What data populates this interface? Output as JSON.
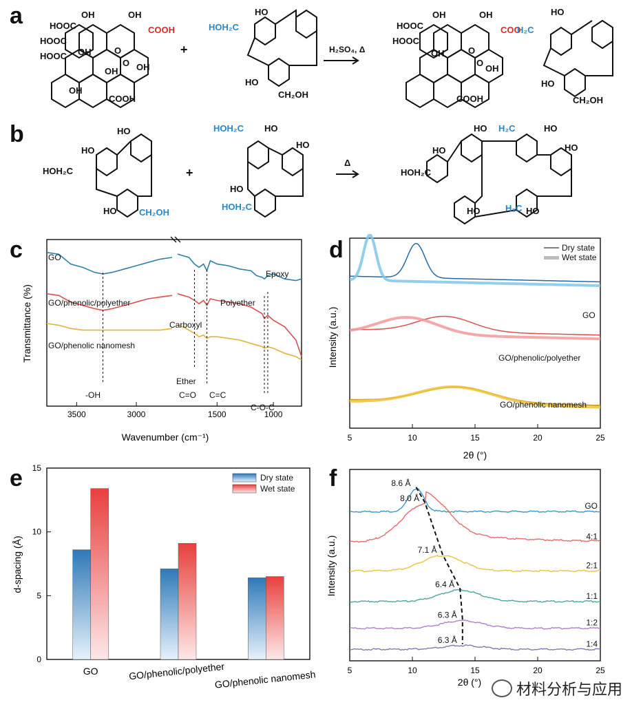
{
  "panels": {
    "a": "a",
    "b": "b",
    "c": "c",
    "d": "d",
    "e": "e",
    "f": "f"
  },
  "schemes": {
    "a": {
      "go_labels": [
        "COOH",
        "HOOC",
        "OH",
        "HOOC",
        "HOOC",
        "OH",
        "O",
        "OH",
        "O",
        "OH",
        "OH",
        "COOH",
        "OH"
      ],
      "phenolic_label": "HOH₂C",
      "phenolic_ring_labels": [
        "HO",
        "HO",
        "CH₂OH"
      ],
      "plus": "+",
      "reagent": "H₂SO₄, Δ",
      "product_link": "COO",
      "product_link2": "H₂C",
      "product_labels": [
        "HOOC",
        "HOOC",
        "OH",
        "OH",
        "O",
        "OH",
        "O",
        "OH",
        "COOH",
        "HO",
        "HO",
        "CH₂OH"
      ]
    },
    "b": {
      "left_labels": [
        "HO",
        "HO",
        "HOH₂C",
        "HO",
        "CH₂OH"
      ],
      "right_labels": [
        "HOH₂C",
        "HO",
        "HO",
        "HO",
        "HOH₂C"
      ],
      "plus": "+",
      "reagent": "Δ",
      "product_labels": [
        "HO",
        "H₂C",
        "HO",
        "HO",
        "HOH₂C",
        "HO",
        "HO",
        "HO",
        "H₂C"
      ]
    }
  },
  "chart_data": [
    {
      "panel": "c",
      "type": "line",
      "xlabel": "Wavenumber (cm⁻¹)",
      "ylabel": "Transmittance (%)",
      "x_ticks": [
        "3500",
        "3000",
        "1500",
        "1000"
      ],
      "series": [
        {
          "name": "GO",
          "color": "#2d7fa6",
          "x": [
            3750,
            3650,
            3550,
            3450,
            3350,
            3280,
            3200,
            3100,
            3000,
            2900,
            2800,
            2700,
            1850,
            1800,
            1750,
            1700,
            1660,
            1620,
            1590,
            1560,
            1500,
            1400,
            1300,
            1200,
            1150,
            1100,
            1080,
            1050,
            1000,
            900,
            800,
            750
          ],
          "y": [
            0.93,
            0.92,
            0.86,
            0.84,
            0.81,
            0.8,
            0.81,
            0.83,
            0.85,
            0.87,
            0.89,
            0.9,
            0.92,
            0.91,
            0.9,
            0.86,
            0.84,
            0.86,
            0.82,
            0.88,
            0.86,
            0.85,
            0.83,
            0.82,
            0.79,
            0.78,
            0.77,
            0.79,
            0.8,
            0.77,
            0.76,
            0.77
          ]
        },
        {
          "name": "GO/phenolic/polyether",
          "color": "#d9504f",
          "x": [
            3750,
            3650,
            3550,
            3450,
            3350,
            3280,
            3200,
            3100,
            3000,
            2900,
            2800,
            2700,
            1850,
            1800,
            1750,
            1700,
            1660,
            1620,
            1590,
            1560,
            1500,
            1400,
            1300,
            1200,
            1150,
            1100,
            1080,
            1050,
            1000,
            900,
            800,
            750
          ],
          "y": [
            0.68,
            0.67,
            0.63,
            0.61,
            0.59,
            0.58,
            0.59,
            0.61,
            0.63,
            0.65,
            0.66,
            0.67,
            0.68,
            0.67,
            0.66,
            0.64,
            0.62,
            0.64,
            0.61,
            0.65,
            0.64,
            0.63,
            0.62,
            0.6,
            0.58,
            0.56,
            0.53,
            0.55,
            0.52,
            0.48,
            0.4,
            0.3
          ]
        },
        {
          "name": "GO/phenolic nanomesh",
          "color": "#e3b23c",
          "x": [
            3750,
            3650,
            3550,
            3450,
            3350,
            3280,
            3200,
            3100,
            3000,
            2900,
            2800,
            2700,
            1850,
            1800,
            1750,
            1700,
            1660,
            1620,
            1590,
            1560,
            1500,
            1400,
            1300,
            1200,
            1150,
            1100,
            1080,
            1050,
            1000,
            900,
            800,
            750
          ],
          "y": [
            0.5,
            0.49,
            0.47,
            0.46,
            0.46,
            0.46,
            0.46,
            0.46,
            0.46,
            0.46,
            0.46,
            0.47,
            0.49,
            0.48,
            0.46,
            0.44,
            0.42,
            0.43,
            0.41,
            0.42,
            0.42,
            0.41,
            0.4,
            0.38,
            0.37,
            0.36,
            0.35,
            0.36,
            0.35,
            0.32,
            0.3,
            0.28
          ]
        }
      ],
      "annotations": [
        "-OH",
        "Carboxyl",
        "Epoxy",
        "Polyether",
        "Ether",
        "C=O",
        "C=C",
        "C-O-C"
      ],
      "series_labels": [
        "GO",
        "GO/phenolic/polyether",
        "GO/phenolic nanomesh"
      ]
    },
    {
      "panel": "d",
      "type": "line",
      "xlabel": "2θ (°)",
      "ylabel": "Intensity (a.u.)",
      "xlim": [
        5,
        25
      ],
      "x_ticks": [
        "5",
        "10",
        "15",
        "20",
        "25"
      ],
      "legend": [
        "Dry state",
        "Wet state"
      ],
      "legend_position": "top-right",
      "series": [
        {
          "name": "Dry state",
          "group": "GO",
          "color": "#2269a8",
          "peak": 10.3,
          "baseline": 0.8,
          "height": 0.18,
          "width": 0.7
        },
        {
          "name": "Wet state",
          "group": "GO",
          "color": "#80c6ea",
          "peak": 6.6,
          "baseline": 0.78,
          "height": 0.24,
          "width": 0.5
        },
        {
          "name": "Dry state",
          "group": "GO/phenolic/polyether",
          "color": "#d9504f",
          "peak": 12.6,
          "baseline": 0.52,
          "height": 0.08,
          "width": 2.2
        },
        {
          "name": "Wet state",
          "group": "GO/phenolic/polyether",
          "color": "#f19a9a",
          "peak": 9.6,
          "baseline": 0.5,
          "height": 0.09,
          "width": 2.4
        },
        {
          "name": "Dry state",
          "group": "GO/phenolic nanomesh",
          "color": "#c99414",
          "peak": 13.6,
          "baseline": 0.15,
          "height": 0.08,
          "width": 2.8
        },
        {
          "name": "Wet state",
          "group": "GO/phenolic nanomesh",
          "color": "#f0c23a",
          "peak": 13.4,
          "baseline": 0.14,
          "height": 0.09,
          "width": 3.0
        }
      ],
      "series_labels": [
        "GO",
        "GO/phenolic/polyether",
        "GO/phenolic nanomesh"
      ]
    },
    {
      "panel": "e",
      "type": "bar",
      "ylabel": "d-spacing (Å)",
      "ylim": [
        0,
        15
      ],
      "y_ticks": [
        "0",
        "5",
        "10",
        "15"
      ],
      "categories": [
        "GO",
        "GO/phenolic/polyether",
        "GO/phenolic nanomesh"
      ],
      "legend": [
        "Dry state",
        "Wet state"
      ],
      "legend_position": "top-right",
      "series": [
        {
          "name": "Dry state",
          "color": "#2f79b8",
          "values": [
            8.6,
            7.1,
            6.4
          ]
        },
        {
          "name": "Wet state",
          "color": "#e8403d",
          "values": [
            13.4,
            9.1,
            6.5
          ]
        }
      ]
    },
    {
      "panel": "f",
      "type": "line",
      "xlabel": "2θ (°)",
      "ylabel": "Intensity (a.u.)",
      "xlim": [
        5,
        25
      ],
      "x_ticks": [
        "5",
        "10",
        "15",
        "20",
        "25"
      ],
      "series": [
        {
          "name": "GO",
          "color": "#3a96c9",
          "peak": 10.3,
          "peak_label": "8.6 Å",
          "baseline": 0.78,
          "height": 0.12
        },
        {
          "name": "4:1",
          "color": "#e36b6b",
          "peak": 11.0,
          "peak_label": "8.0 Å",
          "baseline": 0.62,
          "height": 0.2
        },
        {
          "name": "2:1",
          "color": "#e8c53d",
          "peak": 12.4,
          "peak_label": "7.1 Å",
          "baseline": 0.47,
          "height": 0.08
        },
        {
          "name": "1:1",
          "color": "#4ea59f",
          "peak": 13.8,
          "peak_label": "6.4 Å",
          "baseline": 0.31,
          "height": 0.06
        },
        {
          "name": "1:2",
          "color": "#b07fc9",
          "peak": 14.0,
          "peak_label": "6.3 Å",
          "baseline": 0.17,
          "height": 0.04
        },
        {
          "name": "1:4",
          "color": "#7b7ea8",
          "peak": 14.0,
          "peak_label": "6.3 Å",
          "baseline": 0.06,
          "height": 0.02
        }
      ]
    }
  ],
  "watermark": "材料分析与应用"
}
